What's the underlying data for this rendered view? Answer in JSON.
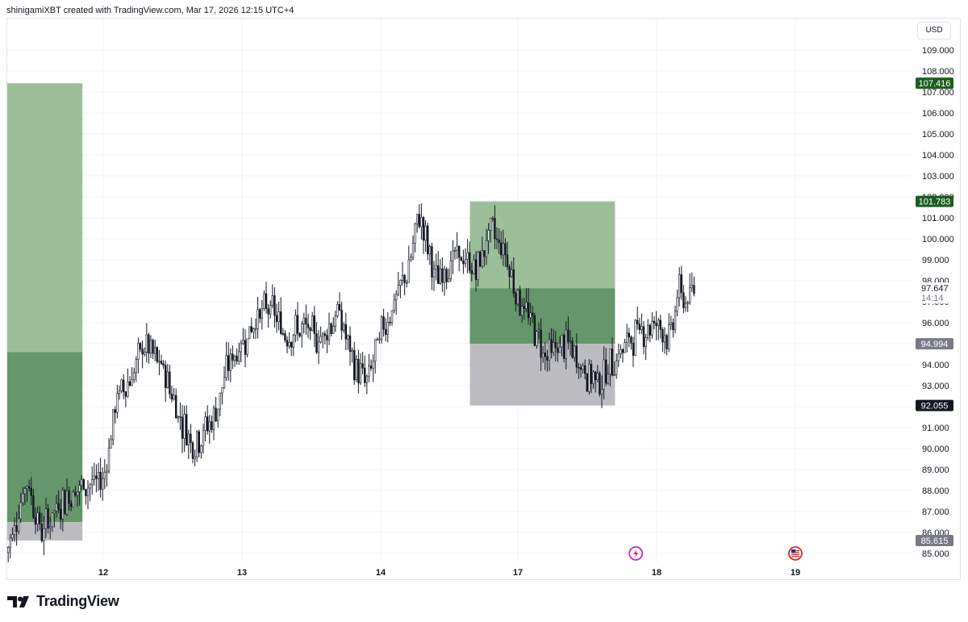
{
  "header": {
    "caption": "shinigamiXBT created with TradingView.com, Mar 17, 2026 12:15 UTC+4"
  },
  "footer": {
    "brand": "TradingView"
  },
  "price_scale": {
    "currency": "USD",
    "ticks": [
      "109.000",
      "108.000",
      "107.000",
      "106.000",
      "105.000",
      "104.000",
      "103.000",
      "102.000",
      "101.000",
      "100.000",
      "99.000",
      "98.000",
      "97.000",
      "96.000",
      "95.000",
      "94.000",
      "93.000",
      "92.000",
      "91.000",
      "90.000",
      "89.000",
      "88.000",
      "87.000",
      "86.000",
      "85.000"
    ],
    "labels": [
      {
        "text": "107.416",
        "value": 107.416,
        "bg": "#1b5e20",
        "fg": "#ffffff"
      },
      {
        "text": "101.783",
        "value": 101.783,
        "bg": "#1b5e20",
        "fg": "#ffffff"
      },
      {
        "text": "94.994",
        "value": 94.994,
        "bg": "#787b86",
        "fg": "#ffffff"
      },
      {
        "text": "92.055",
        "value": 92.055,
        "bg": "#131722",
        "fg": "#ffffff"
      },
      {
        "text": "85.615",
        "value": 85.615,
        "bg": "#787b86",
        "fg": "#ffffff"
      }
    ],
    "last_price": {
      "text": "97.647",
      "value": 97.647,
      "countdown": "14:14"
    }
  },
  "time_axis": {
    "ticks": [
      "12",
      "13",
      "14",
      "17",
      "18",
      "19"
    ]
  },
  "colors": {
    "profit_zone": "#9cbf9a",
    "entry_zone": "#66966b",
    "stop_zone": "#bcbcc0",
    "candle": "#131722",
    "grid": "#f0f3fa"
  },
  "chart_data": {
    "type": "candlestick",
    "symbol_currency": "USD",
    "x_ticks": [
      "12",
      "13",
      "14",
      "17",
      "18",
      "19"
    ],
    "ylim": [
      84.6,
      110.0
    ],
    "y_ticks": [
      85,
      86,
      87,
      88,
      89,
      90,
      91,
      92,
      93,
      94,
      95,
      96,
      97,
      98,
      99,
      100,
      101,
      102,
      103,
      104,
      105,
      106,
      107,
      108,
      109
    ],
    "price_path": [
      {
        "t": 11.3,
        "p": 85.0
      },
      {
        "t": 11.45,
        "p": 88.5
      },
      {
        "t": 11.55,
        "p": 86.0
      },
      {
        "t": 11.7,
        "p": 87.5
      },
      {
        "t": 11.85,
        "p": 88.2
      },
      {
        "t": 12.0,
        "p": 88.5
      },
      {
        "t": 12.1,
        "p": 92.5
      },
      {
        "t": 12.2,
        "p": 93.4
      },
      {
        "t": 12.3,
        "p": 95.0
      },
      {
        "t": 12.45,
        "p": 93.5
      },
      {
        "t": 12.55,
        "p": 91.5
      },
      {
        "t": 12.65,
        "p": 90.2
      },
      {
        "t": 12.8,
        "p": 91.5
      },
      {
        "t": 12.9,
        "p": 94.0
      },
      {
        "t": 13.0,
        "p": 95.0
      },
      {
        "t": 13.1,
        "p": 96.2
      },
      {
        "t": 13.2,
        "p": 96.8
      },
      {
        "t": 13.3,
        "p": 95.5
      },
      {
        "t": 13.45,
        "p": 95.7
      },
      {
        "t": 13.55,
        "p": 95.2
      },
      {
        "t": 13.7,
        "p": 96.5
      },
      {
        "t": 13.8,
        "p": 94.0
      },
      {
        "t": 13.9,
        "p": 93.2
      },
      {
        "t": 14.0,
        "p": 95.5
      },
      {
        "t": 14.1,
        "p": 97.0
      },
      {
        "t": 14.2,
        "p": 98.5
      },
      {
        "t": 14.28,
        "p": 101.2
      },
      {
        "t": 14.4,
        "p": 98.0
      },
      {
        "t": 14.55,
        "p": 99.2
      },
      {
        "t": 14.7,
        "p": 98.5
      },
      {
        "t": 14.8,
        "p": 100.5
      },
      {
        "t": 14.9,
        "p": 99.5
      },
      {
        "t": 15.0,
        "p": 97.2
      },
      {
        "t": 15.1,
        "p": 96.0
      },
      {
        "t": 15.2,
        "p": 94.5
      },
      {
        "t": 15.35,
        "p": 95.0
      },
      {
        "t": 15.5,
        "p": 93.5
      },
      {
        "t": 15.6,
        "p": 93.3
      },
      {
        "t": 15.7,
        "p": 94.3
      },
      {
        "t": 15.85,
        "p": 95.5
      },
      {
        "t": 16.0,
        "p": 96.0
      },
      {
        "t": 16.1,
        "p": 95.2
      },
      {
        "t": 16.15,
        "p": 97.5
      },
      {
        "t": 16.22,
        "p": 97.0
      },
      {
        "t": 16.28,
        "p": 97.6
      }
    ],
    "positions": [
      {
        "name": "",
        "t_start": 11.0,
        "t_end": 11.85,
        "target": 107.416,
        "entry": 94.6,
        "stop": 86.5,
        "stop_low": 85.615
      },
      {
        "name": "",
        "t_start": 14.65,
        "t_end": 15.7,
        "target": 101.783,
        "entry": 97.647,
        "stop": 94.994,
        "stop_low": 92.055
      }
    ],
    "last_price": 97.647,
    "countdown": "14:14",
    "event_markers": [
      {
        "t": 15.85,
        "icon": "flash-event-icon"
      },
      {
        "t": 17.0,
        "icon": "us-flag-event-icon"
      }
    ]
  }
}
